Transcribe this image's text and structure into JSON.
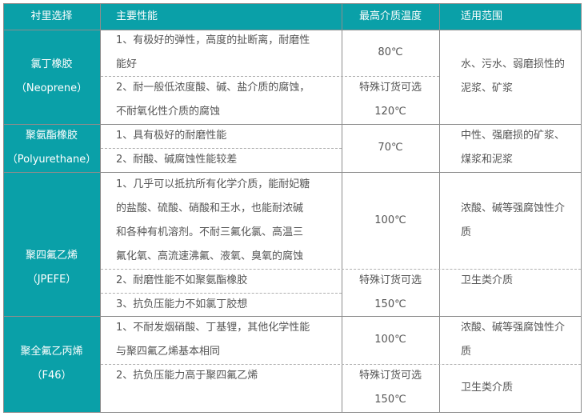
{
  "colors": {
    "header_bg": "#0aa0a8",
    "border": "#8c8c8c"
  },
  "header": [
    "衬里选择",
    "主要性能",
    "最高介质温度",
    "适用范围"
  ],
  "rows": [
    {
      "lining": [
        "氯丁橡胶",
        "（Neoprene）"
      ],
      "performance": [
        [
          "1、有极好的弹性，高度的扯断离，耐磨性",
          "能好"
        ],
        [
          "2、耐一般低浓度酸、碱、盐介质的腐蚀，",
          "不耐氧化性介质的腐蚀"
        ]
      ],
      "temperature": [
        [
          "80℃"
        ],
        [
          "特殊订货可选",
          "120℃"
        ]
      ],
      "scope": [
        [
          "水、污水、弱磨损性的",
          "泥浆、矿浆"
        ]
      ]
    },
    {
      "lining": [
        "聚氨酯橡胶",
        "（Polyurethane）"
      ],
      "performance": [
        [
          "1、具有极好的耐磨性能"
        ],
        [
          "2、耐酸、碱腐蚀性能较差"
        ]
      ],
      "temperature": [
        [
          "70℃"
        ]
      ],
      "scope": [
        [
          "中性、强磨损的矿浆、",
          "煤浆和泥浆"
        ]
      ]
    },
    {
      "lining": [
        "聚四氟乙烯",
        "（JPEFE）"
      ],
      "performance": [
        [
          "1、几乎可以抵抗所有化学介质，能耐妃糖",
          "的盐酸、硫酸、硝酸和王水，也能耐浓碱",
          "和各种有机溶剂。不耐三氟化氯、高温三",
          "氟化氧、高流速沸氟、液氧、臭氧的腐蚀"
        ],
        [
          "2、耐磨性能不如聚氨酯橡胶"
        ],
        [
          "3、抗负压能力不如氯丁胶想"
        ]
      ],
      "temperature": [
        [
          "100℃"
        ],
        [
          "特殊订货可选",
          "150℃"
        ]
      ],
      "scope": [
        [
          "浓酸、碱等强腐蚀性介",
          "质"
        ],
        [
          "卫生类介质"
        ]
      ]
    },
    {
      "lining": [
        "聚全氟乙丙烯",
        "（F46）"
      ],
      "performance": [
        [
          "1、不耐发烟硝酸、丁基锂，其他化学性能",
          "与聚四氟乙烯基本相同"
        ],
        [
          "2、抗负压能力高于聚四氟乙烯"
        ]
      ],
      "temperature": [
        [
          "100℃"
        ],
        [
          "特殊订货可选",
          "150℃"
        ]
      ],
      "scope": [
        [
          "浓酸、碱等强腐蚀性介",
          "质"
        ],
        [
          "卫生类介质"
        ]
      ]
    }
  ]
}
